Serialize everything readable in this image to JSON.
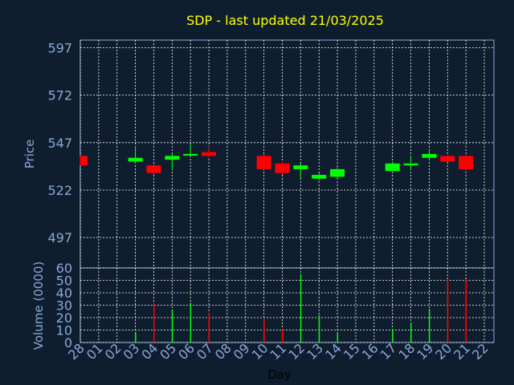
{
  "colors": {
    "background": "#0f1e2f",
    "title": "#ffff00",
    "axis_text": "#8aa8d8",
    "grid": "#ffffff",
    "up": "#00ff00",
    "down": "#ff0000",
    "frame": "#8aa8d8"
  },
  "chart_data": [
    {
      "type": "candlestick",
      "title": "SDP - last updated 21/03/2025",
      "xlabel": "Day",
      "ylabel": "Price",
      "ylim": [
        481,
        601
      ],
      "yticks": [
        497,
        522,
        547,
        572,
        597
      ],
      "grid": true,
      "x": [
        "28",
        "01",
        "02",
        "03",
        "04",
        "05",
        "06",
        "07",
        "08",
        "09",
        "10",
        "11",
        "12",
        "13",
        "14",
        "15",
        "16",
        "17",
        "18",
        "19",
        "20",
        "21",
        "22"
      ],
      "candles": [
        {
          "x": "28",
          "open": 540,
          "high": 540,
          "low": 535,
          "close": 535
        },
        {
          "x": "03",
          "open": 537,
          "high": 545,
          "low": 536,
          "close": 539
        },
        {
          "x": "04",
          "open": 535,
          "high": 536,
          "low": 530,
          "close": 531
        },
        {
          "x": "05",
          "open": 538,
          "high": 541,
          "low": 533,
          "close": 540
        },
        {
          "x": "06",
          "open": 541,
          "high": 546,
          "low": 540,
          "close": 541
        },
        {
          "x": "07",
          "open": 542,
          "high": 545,
          "low": 539,
          "close": 540
        },
        {
          "x": "10",
          "open": 540,
          "high": 541,
          "low": 533,
          "close": 533
        },
        {
          "x": "11",
          "open": 536,
          "high": 537,
          "low": 530,
          "close": 531
        },
        {
          "x": "12",
          "open": 533,
          "high": 536,
          "low": 528,
          "close": 535
        },
        {
          "x": "13",
          "open": 528,
          "high": 531,
          "low": 527,
          "close": 530
        },
        {
          "x": "14",
          "open": 529,
          "high": 534,
          "low": 528,
          "close": 533
        },
        {
          "x": "17",
          "open": 532,
          "high": 537,
          "low": 532,
          "close": 536
        },
        {
          "x": "18",
          "open": 535,
          "high": 540,
          "low": 533,
          "close": 536
        },
        {
          "x": "19",
          "open": 539,
          "high": 543,
          "low": 538,
          "close": 541
        },
        {
          "x": "20",
          "open": 540,
          "high": 540,
          "low": 537,
          "close": 537
        },
        {
          "x": "21",
          "open": 540,
          "high": 540,
          "low": 532,
          "close": 533
        }
      ]
    },
    {
      "type": "bar",
      "xlabel": "Day",
      "ylabel": "Volume (0000)",
      "ylim": [
        0,
        60
      ],
      "yticks": [
        0,
        10,
        20,
        30,
        40,
        50,
        60
      ],
      "grid": true,
      "categories": [
        "28",
        "01",
        "02",
        "03",
        "04",
        "05",
        "06",
        "07",
        "08",
        "09",
        "10",
        "11",
        "12",
        "13",
        "14",
        "15",
        "16",
        "17",
        "18",
        "19",
        "20",
        "21",
        "22"
      ],
      "bars": [
        {
          "x": "03",
          "value": 8,
          "color": "up"
        },
        {
          "x": "04",
          "value": 32,
          "color": "down"
        },
        {
          "x": "05",
          "value": 26,
          "color": "up"
        },
        {
          "x": "06",
          "value": 32,
          "color": "up"
        },
        {
          "x": "07",
          "value": 24,
          "color": "down"
        },
        {
          "x": "10",
          "value": 19,
          "color": "down"
        },
        {
          "x": "11",
          "value": 11,
          "color": "down"
        },
        {
          "x": "12",
          "value": 55,
          "color": "up"
        },
        {
          "x": "13",
          "value": 22,
          "color": "up"
        },
        {
          "x": "14",
          "value": 7,
          "color": "up"
        },
        {
          "x": "17",
          "value": 11,
          "color": "up"
        },
        {
          "x": "18",
          "value": 16,
          "color": "up"
        },
        {
          "x": "19",
          "value": 27,
          "color": "up"
        },
        {
          "x": "20",
          "value": 51,
          "color": "down"
        },
        {
          "x": "21",
          "value": 51,
          "color": "down"
        }
      ]
    }
  ]
}
